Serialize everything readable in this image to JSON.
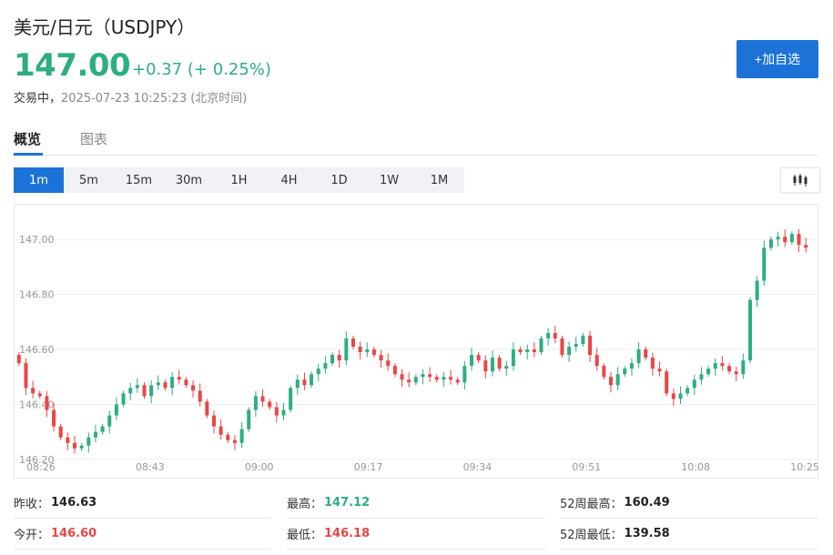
{
  "header": {
    "title": "美元/日元（USDJPY）",
    "price": "147.00",
    "change": "+0.37 (+ 0.25%)",
    "status": "交易中，",
    "timestamp": "2025-07-23 10:25:23 (北京时间)",
    "add_button": "+加自选"
  },
  "tabs": [
    "概览",
    "图表"
  ],
  "periods": [
    "1m",
    "5m",
    "15m",
    "30m",
    "1H",
    "4H",
    "1D",
    "1W",
    "1M"
  ],
  "active_period": "1m",
  "colors": {
    "up": "#2ead83",
    "down": "#ea4646",
    "accent": "#1d72d8"
  },
  "chart_data": {
    "type": "candlestick",
    "y_ticks": [
      "147.00",
      "146.80",
      "146.60",
      "146.40",
      "146.20"
    ],
    "ylim": [
      146.17,
      147.08
    ],
    "x_ticks": [
      "08:26",
      "08:43",
      "09:00",
      "09:17",
      "09:34",
      "09:51",
      "10:08",
      "10:25"
    ],
    "closes": [
      146.55,
      146.46,
      146.44,
      146.43,
      146.38,
      146.32,
      146.28,
      146.26,
      146.24,
      146.25,
      146.28,
      146.3,
      146.32,
      146.36,
      146.4,
      146.44,
      146.46,
      146.47,
      146.43,
      146.47,
      146.48,
      146.46,
      146.5,
      146.49,
      146.47,
      146.45,
      146.41,
      146.36,
      146.32,
      146.29,
      146.27,
      146.26,
      146.31,
      146.38,
      146.43,
      146.41,
      146.39,
      146.36,
      146.38,
      146.46,
      146.49,
      146.47,
      146.51,
      146.53,
      146.55,
      146.58,
      146.56,
      146.64,
      146.61,
      146.59,
      146.6,
      146.58,
      146.56,
      146.54,
      146.51,
      146.49,
      146.48,
      146.5,
      146.51,
      146.5,
      146.49,
      146.5,
      146.49,
      146.48,
      146.54,
      146.58,
      146.56,
      146.52,
      146.57,
      146.53,
      146.54,
      146.6,
      146.59,
      146.6,
      146.59,
      146.64,
      146.66,
      146.64,
      146.58,
      146.61,
      146.62,
      146.65,
      146.58,
      146.54,
      146.5,
      146.47,
      146.51,
      146.53,
      146.55,
      146.6,
      146.57,
      146.53,
      146.52,
      146.44,
      146.42,
      146.44,
      146.46,
      146.49,
      146.51,
      146.53,
      146.55,
      146.54,
      146.52,
      146.51,
      146.56,
      146.78,
      146.85,
      146.97,
      147.0,
      147.01,
      146.99,
      147.02,
      146.98,
      146.97
    ],
    "ylabel": ""
  },
  "stats": {
    "prev_close": {
      "label": "昨收：",
      "value": "146.63"
    },
    "high": {
      "label": "最高：",
      "value": "147.12"
    },
    "w52_high": {
      "label": "52周最高：",
      "value": "160.49"
    },
    "open": {
      "label": "今开：",
      "value": "146.60"
    },
    "low": {
      "label": "最低：",
      "value": "146.18"
    },
    "w52_low": {
      "label": "52周最低：",
      "value": "139.58"
    }
  }
}
